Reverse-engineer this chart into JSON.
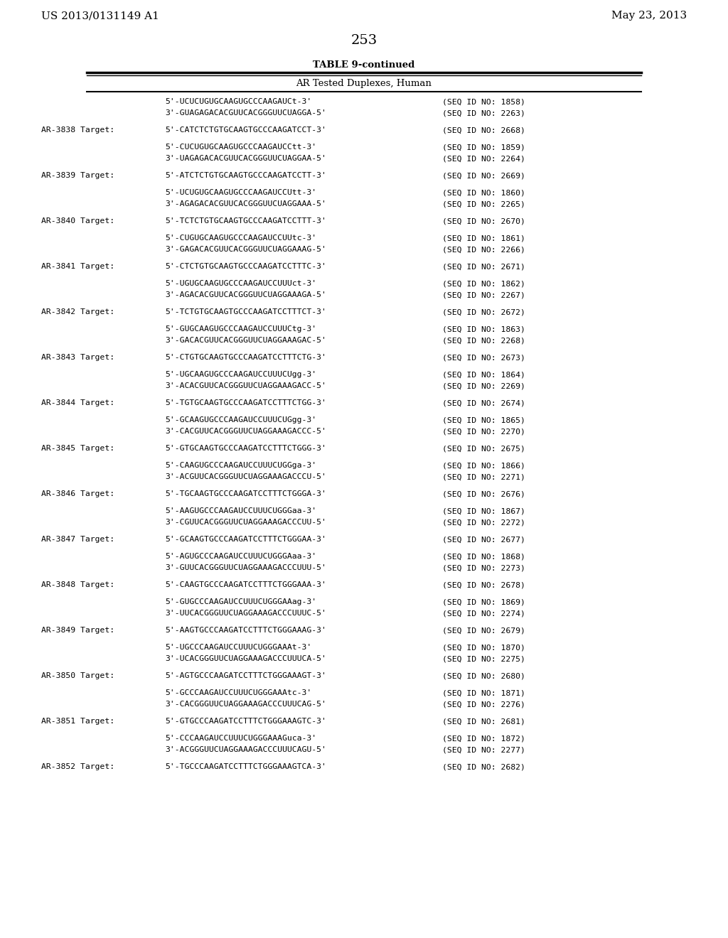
{
  "header_left": "US 2013/0131149 A1",
  "header_right": "May 23, 2013",
  "page_number": "253",
  "table_title": "TABLE 9-continued",
  "table_subtitle": "AR Tested Duplexes, Human",
  "background_color": "#ffffff",
  "text_color": "#000000",
  "lines": [
    {
      "type": "seq_pair_only",
      "seq5": "5'-UCUCUGUGCAAGUGCCCAAGAUCt-3'",
      "seq3": "3'-GUAGAGACACGUUCACGGGUUCUAGGA-5'",
      "seqid5": "(SEQ ID NO: 1858)",
      "seqid3": "(SEQ ID NO: 2263)"
    },
    {
      "type": "target",
      "label": "AR-3838 Target:",
      "seq": "5'-CATCTCTGTGCAAGTGCCCAAGATCCT-3'",
      "seqid": "(SEQ ID NO: 2668)"
    },
    {
      "type": "seq_pair",
      "seq5": "5'-CUCUGUGCAAGUGCCCAAGAUCCtt-3'",
      "seq3": "3'-UAGAGACACGUUCACGGGUUCUAGGAA-5'",
      "seqid5": "(SEQ ID NO: 1859)",
      "seqid3": "(SEQ ID NO: 2264)"
    },
    {
      "type": "target",
      "label": "AR-3839 Target:",
      "seq": "5'-ATCTCTGTGCAAGTGCCCAAGATCCTT-3'",
      "seqid": "(SEQ ID NO: 2669)"
    },
    {
      "type": "seq_pair",
      "seq5": "5'-UCUGUGCAAGUGCCCAAGAUCCUtt-3'",
      "seq3": "3'-AGAGACACGUUCACGGGUUCUAGGAAA-5'",
      "seqid5": "(SEQ ID NO: 1860)",
      "seqid3": "(SEQ ID NO: 2265)"
    },
    {
      "type": "target",
      "label": "AR-3840 Target:",
      "seq": "5'-TCTCTGTGCAAGTGCCCAAGATCCTTT-3'",
      "seqid": "(SEQ ID NO: 2670)"
    },
    {
      "type": "seq_pair",
      "seq5": "5'-CUGUGCAAGUGCCCAAGAUCCUUtc-3'",
      "seq3": "3'-GAGACACGUUCACGGGUUCUAGGAAAG-5'",
      "seqid5": "(SEQ ID NO: 1861)",
      "seqid3": "(SEQ ID NO: 2266)"
    },
    {
      "type": "target",
      "label": "AR-3841 Target:",
      "seq": "5'-CTCTGTGCAAGTGCCCAAGATCCTTTC-3'",
      "seqid": "(SEQ ID NO: 2671)"
    },
    {
      "type": "seq_pair",
      "seq5": "5'-UGUGCAAGUGCCCAAGAUCCUUUct-3'",
      "seq3": "3'-AGACACGUUCACGGGUUCUAGGAAAGA-5'",
      "seqid5": "(SEQ ID NO: 1862)",
      "seqid3": "(SEQ ID NO: 2267)"
    },
    {
      "type": "target",
      "label": "AR-3842 Target:",
      "seq": "5'-TCTGTGCAAGTGCCCAAGATCCTTTCT-3'",
      "seqid": "(SEQ ID NO: 2672)"
    },
    {
      "type": "seq_pair",
      "seq5": "5'-GUGCAAGUGCCCAAGAUCCUUUCtg-3'",
      "seq3": "3'-GACACGUUCACGGGUUCUAGGAAAGAC-5'",
      "seqid5": "(SEQ ID NO: 1863)",
      "seqid3": "(SEQ ID NO: 2268)"
    },
    {
      "type": "target",
      "label": "AR-3843 Target:",
      "seq": "5'-CTGTGCAAGTGCCCAAGATCCTTTCTG-3'",
      "seqid": "(SEQ ID NO: 2673)"
    },
    {
      "type": "seq_pair",
      "seq5": "5'-UGCAAGUGCCCAAGAUCCUUUCUgg-3'",
      "seq3": "3'-ACACGUUCACGGGUUCUAGGAAAGACC-5'",
      "seqid5": "(SEQ ID NO: 1864)",
      "seqid3": "(SEQ ID NO: 2269)"
    },
    {
      "type": "target",
      "label": "AR-3844 Target:",
      "seq": "5'-TGTGCAAGTGCCCAAGATCCTTTCTGG-3'",
      "seqid": "(SEQ ID NO: 2674)"
    },
    {
      "type": "seq_pair",
      "seq5": "5'-GCAAGUGCCCAAGAUCCUUUCUGgg-3'",
      "seq3": "3'-CACGUUCACGGGUUCUAGGAAAGACCC-5'",
      "seqid5": "(SEQ ID NO: 1865)",
      "seqid3": "(SEQ ID NO: 2270)"
    },
    {
      "type": "target",
      "label": "AR-3845 Target:",
      "seq": "5'-GTGCAAGTGCCCAAGATCCTTTCTGGG-3'",
      "seqid": "(SEQ ID NO: 2675)"
    },
    {
      "type": "seq_pair",
      "seq5": "5'-CAAGUGCCCAAGAUCCUUUCUGGga-3'",
      "seq3": "3'-ACGUUCACGGGUUCUAGGAAAGACCCU-5'",
      "seqid5": "(SEQ ID NO: 1866)",
      "seqid3": "(SEQ ID NO: 2271)"
    },
    {
      "type": "target",
      "label": "AR-3846 Target:",
      "seq": "5'-TGCAAGTGCCCAAGATCCTTTCTGGGA-3'",
      "seqid": "(SEQ ID NO: 2676)"
    },
    {
      "type": "seq_pair",
      "seq5": "5'-AAGUGCCCAAGAUCCUUUCUGGGaa-3'",
      "seq3": "3'-CGUUCACGGGUUCUAGGAAAGACCCUU-5'",
      "seqid5": "(SEQ ID NO: 1867)",
      "seqid3": "(SEQ ID NO: 2272)"
    },
    {
      "type": "target",
      "label": "AR-3847 Target:",
      "seq": "5'-GCAAGTGCCCAAGATCCTTTCTGGGAA-3'",
      "seqid": "(SEQ ID NO: 2677)"
    },
    {
      "type": "seq_pair",
      "seq5": "5'-AGUGCCCAAGAUCCUUUCUGGGAaa-3'",
      "seq3": "3'-GUUCACGGGUUCUAGGAAAGACCCUUU-5'",
      "seqid5": "(SEQ ID NO: 1868)",
      "seqid3": "(SEQ ID NO: 2273)"
    },
    {
      "type": "target",
      "label": "AR-3848 Target:",
      "seq": "5'-CAAGTGCCCAAGATCCTTTCTGGGAAA-3'",
      "seqid": "(SEQ ID NO: 2678)"
    },
    {
      "type": "seq_pair",
      "seq5": "5'-GUGCCCAAGAUCCUUUCUGGGAAag-3'",
      "seq3": "3'-UUCACGGGUUCUAGGAAAGACCCUUUC-5'",
      "seqid5": "(SEQ ID NO: 1869)",
      "seqid3": "(SEQ ID NO: 2274)"
    },
    {
      "type": "target",
      "label": "AR-3849 Target:",
      "seq": "5'-AAGTGCCCAAGATCCTTTCTGGGAAAG-3'",
      "seqid": "(SEQ ID NO: 2679)"
    },
    {
      "type": "seq_pair",
      "seq5": "5'-UGCCCAAGAUCCUUUCUGGGAAAt-3'",
      "seq3": "3'-UCACGGGUUCUAGGAAAGACCCUUUCA-5'",
      "seqid5": "(SEQ ID NO: 1870)",
      "seqid3": "(SEQ ID NO: 2275)"
    },
    {
      "type": "target",
      "label": "AR-3850 Target:",
      "seq": "5'-AGTGCCCAAGATCCTTTCTGGGAAAGT-3'",
      "seqid": "(SEQ ID NO: 2680)"
    },
    {
      "type": "seq_pair",
      "seq5": "5'-GCCCAAGAUCCUUUCUGGGAAAtc-3'",
      "seq3": "3'-CACGGGUUCUAGGAAAGACCCUUUCAG-5'",
      "seqid5": "(SEQ ID NO: 1871)",
      "seqid3": "(SEQ ID NO: 2276)"
    },
    {
      "type": "target",
      "label": "AR-3851 Target:",
      "seq": "5'-GTGCCCAAGATCCTTTCTGGGAAAGTC-3'",
      "seqid": "(SEQ ID NO: 2681)"
    },
    {
      "type": "seq_pair",
      "seq5": "5'-CCCAAGAUCCUUUCUGGGAAAGuca-3'",
      "seq3": "3'-ACGGGUUCUAGGAAAGACCCUUUCAGU-5'",
      "seqid5": "(SEQ ID NO: 1872)",
      "seqid3": "(SEQ ID NO: 2277)"
    },
    {
      "type": "target",
      "label": "AR-3852 Target:",
      "seq": "5'-TGCCCAAGATCCTTTCTGGGAAAGTCA-3'",
      "seqid": "(SEQ ID NO: 2682)"
    }
  ]
}
